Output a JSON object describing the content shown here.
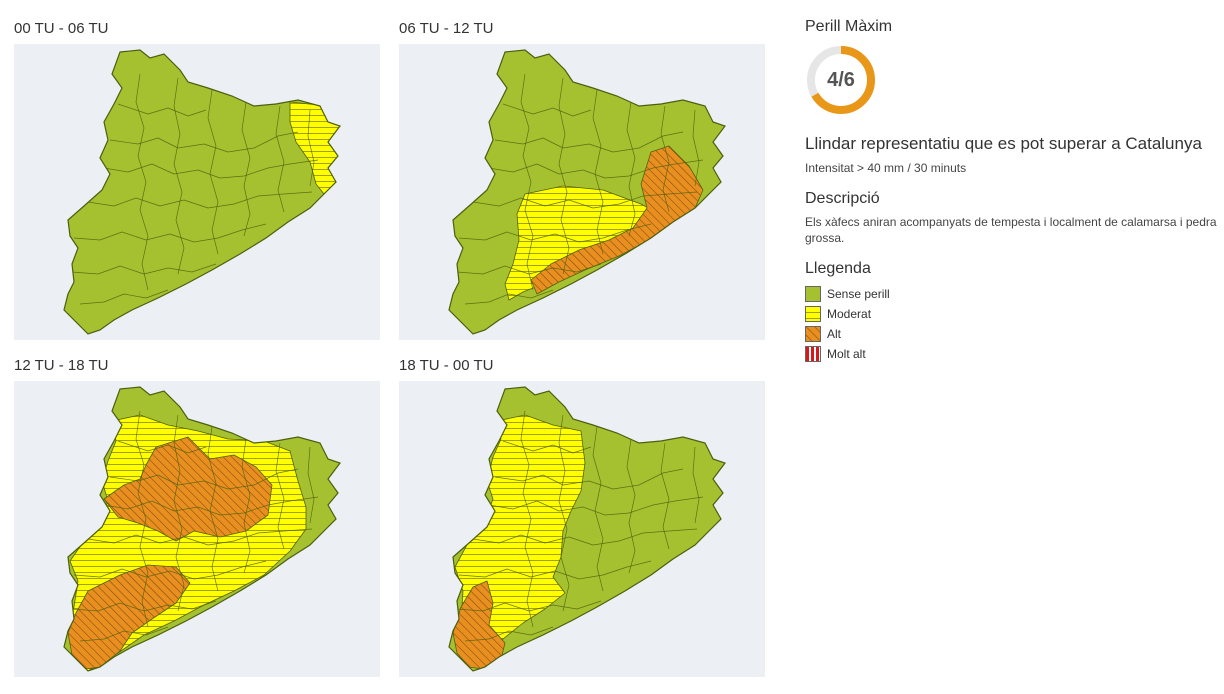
{
  "maps": [
    {
      "title": "00 TU - 06 TU",
      "scheme": "s0"
    },
    {
      "title": "06 TU - 12 TU",
      "scheme": "s1"
    },
    {
      "title": "12 TU - 18 TU",
      "scheme": "s2"
    },
    {
      "title": "18 TU - 00 TU",
      "scheme": "s3"
    }
  ],
  "sidebar": {
    "max_title": "Perill Màxim",
    "max_value": "4/6",
    "max_level": 4,
    "max_of": 6,
    "threshold_title": "Llindar representatiu que es pot superar a Catalunya",
    "threshold_value": "Intensitat > 40 mm / 30 minuts",
    "desc_title": "Descripció",
    "desc_text": "Els xàfecs aniran acompanyats de tempesta i localment de calamarsa i pedra grossa.",
    "legend_title": "Llegenda",
    "legend": [
      {
        "label": "Sense perill",
        "pattern": "green"
      },
      {
        "label": "Moderat",
        "pattern": "yellow"
      },
      {
        "label": "Alt",
        "pattern": "orange"
      },
      {
        "label": "Molt alt",
        "pattern": "red"
      }
    ]
  },
  "colors": {
    "green": "#a6c12f",
    "yellow": "#ffff00",
    "orange": "#e88f1f",
    "red": "#d7191c",
    "gauge": "#e99718"
  }
}
